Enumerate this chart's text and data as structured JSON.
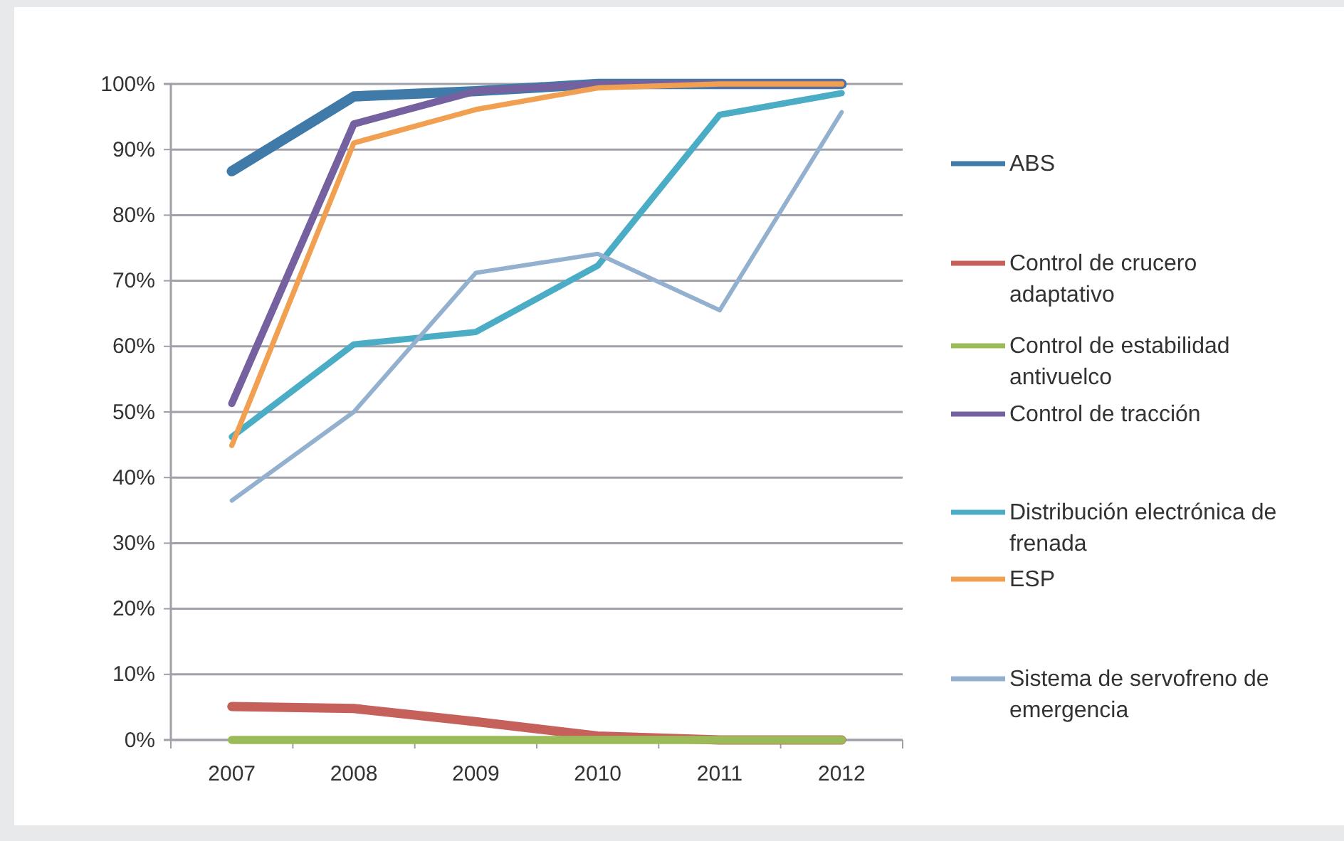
{
  "chart_data": {
    "type": "line",
    "categories": [
      "2007",
      "2008",
      "2009",
      "2010",
      "2011",
      "2012"
    ],
    "ylim": [
      0,
      100
    ],
    "yticks": [
      {
        "value": 0,
        "label": "0%"
      },
      {
        "value": 10,
        "label": "10%"
      },
      {
        "value": 20,
        "label": "20%"
      },
      {
        "value": 30,
        "label": "30%"
      },
      {
        "value": 40,
        "label": "40%"
      },
      {
        "value": 50,
        "label": "50%"
      },
      {
        "value": 60,
        "label": "60%"
      },
      {
        "value": 70,
        "label": "70%"
      },
      {
        "value": 80,
        "label": "80%"
      },
      {
        "value": 90,
        "label": "90%"
      },
      {
        "value": 100,
        "label": "100%"
      }
    ],
    "grid": "y",
    "legend": "right",
    "marker": "none",
    "series": [
      {
        "name": "ABS",
        "color": "#3f7aa8",
        "values": [
          86.7,
          98.1,
          98.9,
          100,
          100,
          100
        ]
      },
      {
        "name": "Control de crucero adaptativo",
        "color": "#c5605a",
        "values": [
          5.1,
          4.8,
          2.8,
          0.6,
          0,
          0
        ]
      },
      {
        "name": "Control de estabilidad antivuelco",
        "color": "#9bbb59",
        "values": [
          0,
          0,
          0,
          0,
          0,
          0
        ]
      },
      {
        "name": "Control de tracción",
        "color": "#7560a0",
        "values": [
          51.3,
          93.9,
          98.9,
          100,
          100,
          100
        ]
      },
      {
        "name": "Distribución electrónica de frenada",
        "color": "#4aacc5",
        "values": [
          46.2,
          60.3,
          62.2,
          72.3,
          95.3,
          98.6
        ]
      },
      {
        "name": "ESP",
        "color": "#f0a050",
        "values": [
          44.9,
          91,
          96.1,
          99.4,
          100,
          100
        ]
      },
      {
        "name": "Sistema de servofreno de emergencia",
        "color": "#93b0cf",
        "values": [
          36.5,
          50,
          71.2,
          74.1,
          65.5,
          95.7
        ]
      }
    ]
  }
}
